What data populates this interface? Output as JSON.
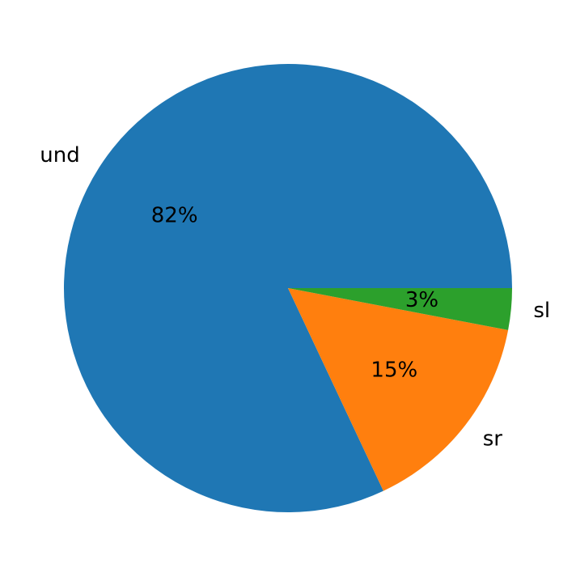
{
  "chart_data": {
    "type": "pie",
    "categories": [
      "und",
      "sr",
      "sl"
    ],
    "values": [
      82,
      15,
      3
    ],
    "value_labels": [
      "82%",
      "15%",
      "3%"
    ],
    "colors": [
      "#1f77b4",
      "#ff7f0e",
      "#2ca02c"
    ]
  }
}
